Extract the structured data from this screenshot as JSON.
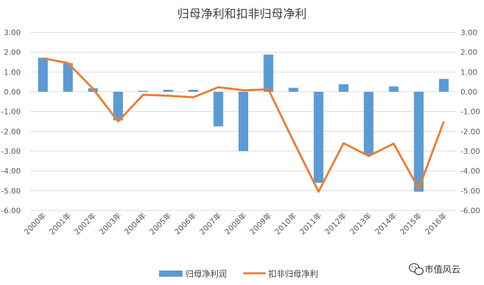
{
  "chart_data": {
    "type": "bar",
    "title": "归母净利和扣非归母净利",
    "categories": [
      "2000年",
      "2001年",
      "2002年",
      "2003年",
      "2004年",
      "2005年",
      "2006年",
      "2007年",
      "2008年",
      "2009年",
      "2010年",
      "2011年",
      "2012年",
      "2013年",
      "2014年",
      "2015年",
      "2016年"
    ],
    "ylim": [
      -6,
      3
    ],
    "yticks": [
      "3.00",
      "2.00",
      "1.00",
      "0.00",
      "-1.00",
      "-2.00",
      "-3.00",
      "-4.00",
      "-5.00",
      "-6.00"
    ],
    "grid": true,
    "legend_position": "bottom",
    "series": [
      {
        "name": "归母净利润",
        "type": "bar",
        "color": "#5B9BD5",
        "values": [
          1.72,
          1.45,
          0.18,
          -1.45,
          0.05,
          0.1,
          0.1,
          -1.75,
          -3.0,
          1.88,
          0.2,
          -4.6,
          0.38,
          -3.2,
          0.27,
          -5.05,
          0.65
        ]
      },
      {
        "name": "扣非归母净利",
        "type": "line",
        "color": "#ED7D31",
        "values": [
          1.7,
          1.45,
          0.15,
          -1.5,
          -0.15,
          -0.2,
          -0.28,
          0.23,
          0.08,
          0.12,
          -2.5,
          -5.05,
          -2.6,
          -3.25,
          -2.62,
          -4.9,
          -1.5
        ]
      }
    ]
  },
  "watermark": {
    "text": "市值风云",
    "icon": "wechat-icon"
  }
}
